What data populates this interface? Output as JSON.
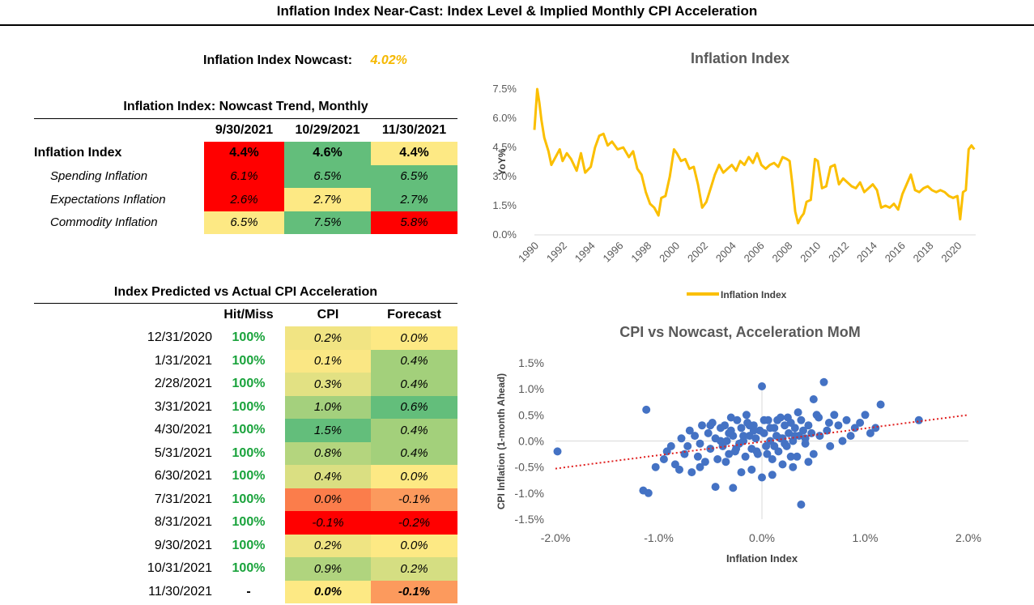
{
  "page_title": "Inflation Index Near-Cast: Index Level & Implied Monthly CPI Acceleration",
  "nowcast": {
    "label": "Inflation Index Nowcast:",
    "value": "4.02%"
  },
  "colors": {
    "red": "#ff0000",
    "orange": "#fb8c51",
    "light_orange": "#fdaa6a",
    "yellow": "#fde984",
    "pale_green": "#c9de82",
    "light_green": "#a3d07b",
    "green": "#63be7b",
    "line": "#fbbf00",
    "dots": "#4472c4",
    "trend": "#e02020"
  },
  "trend_table": {
    "title": "Inflation Index: Nowcast Trend, Monthly",
    "columns": [
      "9/30/2021",
      "10/29/2021",
      "11/30/2021"
    ],
    "rows": [
      {
        "label": "Inflation Index",
        "values": [
          "4.4%",
          "4.6%",
          "4.4%"
        ],
        "fills": [
          "#ff0000",
          "#63be7b",
          "#fde984"
        ]
      },
      {
        "label": "Spending Inflation",
        "values": [
          "6.1%",
          "6.5%",
          "6.5%"
        ],
        "fills": [
          "#ff0000",
          "#63be7b",
          "#63be7b"
        ]
      },
      {
        "label": "Expectations Inflation",
        "values": [
          "2.6%",
          "2.7%",
          "2.7%"
        ],
        "fills": [
          "#ff0000",
          "#fde984",
          "#63be7b"
        ]
      },
      {
        "label": "Commodity Inflation",
        "values": [
          "6.5%",
          "7.5%",
          "5.8%"
        ],
        "fills": [
          "#fde984",
          "#63be7b",
          "#ff0000"
        ]
      }
    ]
  },
  "accel_table": {
    "title": "Index Predicted vs Actual CPI Acceleration",
    "columns": [
      "Hit/Miss",
      "CPI",
      "Forecast"
    ],
    "rows": [
      {
        "date": "12/31/2020",
        "hit": "100%",
        "cpi": "0.2%",
        "forecast": "0.0%",
        "cpi_fill": "#f1e483",
        "fc_fill": "#fde984"
      },
      {
        "date": "1/31/2021",
        "hit": "100%",
        "cpi": "0.1%",
        "forecast": "0.4%",
        "cpi_fill": "#fae784",
        "fc_fill": "#a3d07b"
      },
      {
        "date": "2/28/2021",
        "hit": "100%",
        "cpi": "0.3%",
        "forecast": "0.4%",
        "cpi_fill": "#e2e183",
        "fc_fill": "#a3d07b"
      },
      {
        "date": "3/31/2021",
        "hit": "100%",
        "cpi": "1.0%",
        "forecast": "0.6%",
        "cpi_fill": "#a4d07d",
        "fc_fill": "#63be7b"
      },
      {
        "date": "4/30/2021",
        "hit": "100%",
        "cpi": "1.5%",
        "forecast": "0.4%",
        "cpi_fill": "#63be7b",
        "fc_fill": "#a3d07b"
      },
      {
        "date": "5/31/2021",
        "hit": "100%",
        "cpi": "0.8%",
        "forecast": "0.4%",
        "cpi_fill": "#b4d57e",
        "fc_fill": "#a3d07b"
      },
      {
        "date": "6/30/2021",
        "hit": "100%",
        "cpi": "0.4%",
        "forecast": "0.0%",
        "cpi_fill": "#dadf82",
        "fc_fill": "#fde984"
      },
      {
        "date": "7/31/2021",
        "hit": "100%",
        "cpi": "0.0%",
        "forecast": "-0.1%",
        "cpi_fill": "#fb7d4b",
        "fc_fill": "#fc9a5d"
      },
      {
        "date": "8/31/2021",
        "hit": "100%",
        "cpi": "-0.1%",
        "forecast": "-0.2%",
        "cpi_fill": "#ff0000",
        "fc_fill": "#ff0000"
      },
      {
        "date": "9/30/2021",
        "hit": "100%",
        "cpi": "0.2%",
        "forecast": "0.0%",
        "cpi_fill": "#efe483",
        "fc_fill": "#fde984"
      },
      {
        "date": "10/31/2021",
        "hit": "100%",
        "cpi": "0.9%",
        "forecast": "0.2%",
        "cpi_fill": "#b0d47e",
        "fc_fill": "#d5de82"
      },
      {
        "date": "11/30/2021",
        "hit": "-",
        "cpi": "0.0%",
        "forecast": "-0.1%",
        "cpi_fill": "#fde984",
        "fc_fill": "#fc9a5d"
      }
    ]
  },
  "chart_data": [
    {
      "type": "line",
      "title": "Inflation Index",
      "ylabel": "YoY%",
      "xlabel": "",
      "ylim": [
        0.0,
        7.5
      ],
      "yticks": [
        "0.0%",
        "1.5%",
        "3.0%",
        "4.5%",
        "6.0%",
        "7.5%"
      ],
      "xlim": [
        1990,
        2021.3
      ],
      "xticks": [
        "1990",
        "1992",
        "1994",
        "1996",
        "1998",
        "2000",
        "2002",
        "2004",
        "2006",
        "2008",
        "2010",
        "2012",
        "2014",
        "2016",
        "2018",
        "2020"
      ],
      "legend": "bottom",
      "series": [
        {
          "name": "Inflation Index",
          "x": [
            1990.0,
            1990.2,
            1990.35,
            1990.5,
            1990.7,
            1991.0,
            1991.2,
            1991.5,
            1991.8,
            1992.0,
            1992.3,
            1992.6,
            1993.0,
            1993.3,
            1993.6,
            1994.0,
            1994.3,
            1994.6,
            1994.9,
            1995.2,
            1995.5,
            1995.9,
            1996.3,
            1996.7,
            1997.0,
            1997.3,
            1997.6,
            1997.9,
            1998.2,
            1998.5,
            1998.8,
            1999.0,
            1999.3,
            1999.6,
            1999.9,
            2000.1,
            2000.4,
            2000.7,
            2001.0,
            2001.3,
            2001.6,
            2001.9,
            2002.2,
            2002.5,
            2002.8,
            2003.1,
            2003.4,
            2003.7,
            2004.0,
            2004.3,
            2004.6,
            2004.9,
            2005.2,
            2005.5,
            2005.8,
            2006.1,
            2006.4,
            2006.7,
            2007.0,
            2007.3,
            2007.6,
            2007.9,
            2008.1,
            2008.3,
            2008.5,
            2008.7,
            2008.9,
            2009.1,
            2009.3,
            2009.6,
            2009.9,
            2010.1,
            2010.4,
            2010.7,
            2011.0,
            2011.3,
            2011.6,
            2011.9,
            2012.2,
            2012.5,
            2012.8,
            2013.1,
            2013.4,
            2013.7,
            2014.0,
            2014.3,
            2014.6,
            2014.9,
            2015.2,
            2015.5,
            2015.8,
            2016.1,
            2016.4,
            2016.7,
            2017.0,
            2017.3,
            2017.6,
            2017.9,
            2018.2,
            2018.5,
            2018.8,
            2019.1,
            2019.4,
            2019.7,
            2020.0,
            2020.2,
            2020.4,
            2020.6,
            2020.8,
            2021.0,
            2021.2
          ],
          "y": [
            5.4,
            7.5,
            6.8,
            5.9,
            5.0,
            4.3,
            3.6,
            4.0,
            4.4,
            3.8,
            4.2,
            3.9,
            3.3,
            4.2,
            3.2,
            3.5,
            4.5,
            5.1,
            5.2,
            4.6,
            4.8,
            4.4,
            4.5,
            4.0,
            4.3,
            3.4,
            3.1,
            2.2,
            1.6,
            1.4,
            1.0,
            1.9,
            2.0,
            3.0,
            4.4,
            4.2,
            3.8,
            3.9,
            3.4,
            3.5,
            2.6,
            1.4,
            1.7,
            2.4,
            3.1,
            3.6,
            3.2,
            3.4,
            3.6,
            3.3,
            3.8,
            3.6,
            4.0,
            3.7,
            4.2,
            3.6,
            3.4,
            3.6,
            3.7,
            3.5,
            4.0,
            3.9,
            3.8,
            2.6,
            1.2,
            0.6,
            0.9,
            1.1,
            1.7,
            1.8,
            3.9,
            3.8,
            2.4,
            2.5,
            3.5,
            3.6,
            2.6,
            2.9,
            2.7,
            2.5,
            2.4,
            2.7,
            2.2,
            2.4,
            2.6,
            2.3,
            1.4,
            1.5,
            1.4,
            1.6,
            1.3,
            2.1,
            2.6,
            3.1,
            2.3,
            2.2,
            2.4,
            2.5,
            2.3,
            2.2,
            2.3,
            2.2,
            2.0,
            1.9,
            2.0,
            0.8,
            2.2,
            2.3,
            4.4,
            4.6,
            4.4
          ]
        }
      ]
    },
    {
      "type": "scatter",
      "title": "CPI vs Nowcast, Acceleration MoM",
      "xlabel": "Inflation Index",
      "ylabel": "CPI Inflation (1-month Ahead)",
      "xlim": [
        -2.0,
        2.0
      ],
      "ylim": [
        -1.5,
        1.5
      ],
      "xticks": [
        "-2.0%",
        "-1.0%",
        "0.0%",
        "1.0%",
        "2.0%"
      ],
      "yticks": [
        "-1.5%",
        "-1.0%",
        "-0.5%",
        "0.0%",
        "0.5%",
        "1.0%",
        "1.5%"
      ],
      "trendline": {
        "x": [
          -2.0,
          2.0
        ],
        "y": [
          -0.53,
          0.5
        ]
      },
      "series": [
        {
          "name": "",
          "x": [
            -1.98,
            -1.12,
            -1.15,
            -1.1,
            -1.03,
            -0.95,
            -0.92,
            -0.88,
            -0.84,
            -0.8,
            -0.78,
            -0.75,
            -0.72,
            -0.7,
            -0.68,
            -0.65,
            -0.62,
            -0.6,
            -0.58,
            -0.55,
            -0.52,
            -0.5,
            -0.48,
            -0.45,
            -0.43,
            -0.4,
            -0.38,
            -0.36,
            -0.34,
            -0.32,
            -0.3,
            -0.28,
            -0.26,
            -0.24,
            -0.22,
            -0.2,
            -0.18,
            -0.16,
            -0.14,
            -0.12,
            -0.1,
            -0.08,
            -0.06,
            -0.04,
            -0.02,
            0.0,
            0.02,
            0.04,
            0.06,
            0.08,
            0.1,
            0.12,
            0.14,
            0.16,
            0.18,
            0.2,
            0.22,
            0.24,
            0.26,
            0.28,
            0.3,
            0.32,
            0.34,
            0.36,
            0.38,
            0.4,
            0.42,
            0.45,
            0.48,
            0.5,
            0.53,
            0.56,
            0.6,
            0.63,
            0.66,
            0.7,
            0.74,
            0.78,
            0.82,
            0.86,
            0.9,
            0.95,
            1.0,
            1.05,
            1.1,
            1.15,
            1.52,
            0.0,
            0.5,
            0.38,
            -0.28,
            -0.45,
            -0.6,
            -0.35,
            -0.2,
            -0.1,
            0.1,
            0.2,
            0.3,
            0.45,
            -0.3,
            -0.15,
            0.15,
            0.25,
            0.35,
            -0.5,
            0.55,
            0.65,
            -0.25,
            -0.05,
            0.05,
            0.12,
            0.28,
            0.42,
            -0.4,
            -0.32,
            -0.18,
            0.08,
            0.18,
            -0.08,
            0.22,
            0.32,
            -0.12,
            0.02
          ],
          "y": [
            -0.2,
            0.6,
            -0.95,
            -1.0,
            -0.5,
            -0.35,
            -0.2,
            -0.1,
            -0.45,
            -0.55,
            0.05,
            -0.25,
            -0.1,
            0.2,
            -0.6,
            0.1,
            -0.3,
            -0.05,
            0.3,
            -0.4,
            0.15,
            -0.15,
            0.35,
            0.05,
            -0.35,
            0.25,
            -0.1,
            0.3,
            0.0,
            -0.25,
            0.2,
            0.1,
            -0.2,
            0.4,
            -0.05,
            0.25,
            0.0,
            -0.3,
            0.35,
            0.1,
            -0.15,
            0.3,
            0.05,
            -0.25,
            0.2,
            1.05,
            0.15,
            -0.1,
            0.4,
            0.0,
            -0.35,
            0.25,
            0.1,
            -0.2,
            0.45,
            0.05,
            0.3,
            -0.1,
            0.15,
            0.35,
            0.0,
            0.25,
            -0.3,
            0.1,
            0.4,
            0.2,
            -0.05,
            0.3,
            0.15,
            -0.25,
            0.5,
            0.1,
            1.13,
            0.2,
            -0.1,
            0.5,
            0.3,
            0.0,
            0.4,
            0.1,
            0.25,
            0.35,
            0.5,
            0.15,
            0.25,
            0.7,
            0.4,
            -0.7,
            0.8,
            -1.22,
            -0.9,
            -0.88,
            -0.5,
            -0.4,
            -0.6,
            -0.55,
            -0.65,
            -0.45,
            -0.5,
            -0.4,
            0.45,
            0.5,
            0.4,
            0.45,
            0.55,
            0.3,
            0.45,
            0.35,
            -0.15,
            -0.2,
            -0.25,
            -0.1,
            -0.3,
            0.05,
            0.0,
            0.15,
            0.1,
            0.25,
            0.05,
            0.2,
            -0.05,
            0.1,
            0.3,
            0.4
          ]
        }
      ]
    }
  ]
}
